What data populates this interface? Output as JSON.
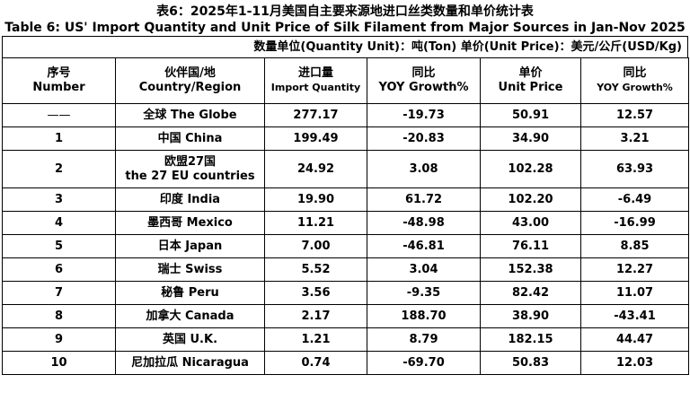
{
  "title_cn": "表6：2025年1-11月美国自主要来源地进口丝类数量和单价统计表",
  "title_en": "Table 6: US' Import Quantity and Unit Price of Silk Filament from Major Sources in Jan-Nov 2025",
  "units": "数量单位(Quantity Unit)：吨(Ton)  单价(Unit Price)：美元/公斤(USD/Kg)",
  "headers": {
    "number_cn": "序号",
    "number_en": "Number",
    "country_cn": "伙伴国/地",
    "country_en": "Country/Region",
    "qty_cn": "进口量",
    "qty_en": "Import Quantity",
    "qty_yoy_cn": "同比",
    "qty_yoy_en": "YOY Growth%",
    "price_cn": "单价",
    "price_en": "Unit Price",
    "price_yoy_cn": "同比",
    "price_yoy_en": "YOY Growth%"
  },
  "rows": [
    {
      "no": "——",
      "country": "全球 The Globe",
      "qty": "277.17",
      "qty_yoy": "-19.73",
      "price": "50.91",
      "price_yoy": "12.57"
    },
    {
      "no": "1",
      "country": "中国 China",
      "qty": "199.49",
      "qty_yoy": "-20.83",
      "price": "34.90",
      "price_yoy": "3.21"
    },
    {
      "no": "2",
      "country": "欧盟27国",
      "country2": "the 27 EU countries",
      "qty": "24.92",
      "qty_yoy": "3.08",
      "price": "102.28",
      "price_yoy": "63.93"
    },
    {
      "no": "3",
      "country": "印度 India",
      "qty": "19.90",
      "qty_yoy": "61.72",
      "price": "102.20",
      "price_yoy": "-6.49"
    },
    {
      "no": "4",
      "country": "墨西哥 Mexico",
      "qty": "11.21",
      "qty_yoy": "-48.98",
      "price": "43.00",
      "price_yoy": "-16.99"
    },
    {
      "no": "5",
      "country": "日本 Japan",
      "qty": "7.00",
      "qty_yoy": "-46.81",
      "price": "76.11",
      "price_yoy": "8.85"
    },
    {
      "no": "6",
      "country": "瑞士 Swiss",
      "qty": "5.52",
      "qty_yoy": "3.04",
      "price": "152.38",
      "price_yoy": "12.27"
    },
    {
      "no": "7",
      "country": "秘鲁 Peru",
      "qty": "3.56",
      "qty_yoy": "-9.35",
      "price": "82.42",
      "price_yoy": "11.07"
    },
    {
      "no": "8",
      "country": "加拿大 Canada",
      "qty": "2.17",
      "qty_yoy": "188.70",
      "price": "38.90",
      "price_yoy": "-43.41"
    },
    {
      "no": "9",
      "country": "英国 U.K.",
      "qty": "1.21",
      "qty_yoy": "8.79",
      "price": "182.15",
      "price_yoy": "44.47"
    },
    {
      "no": "10",
      "country": "尼加拉瓜 Nicaragua",
      "qty": "0.74",
      "qty_yoy": "-69.70",
      "price": "50.83",
      "price_yoy": "12.03"
    }
  ]
}
